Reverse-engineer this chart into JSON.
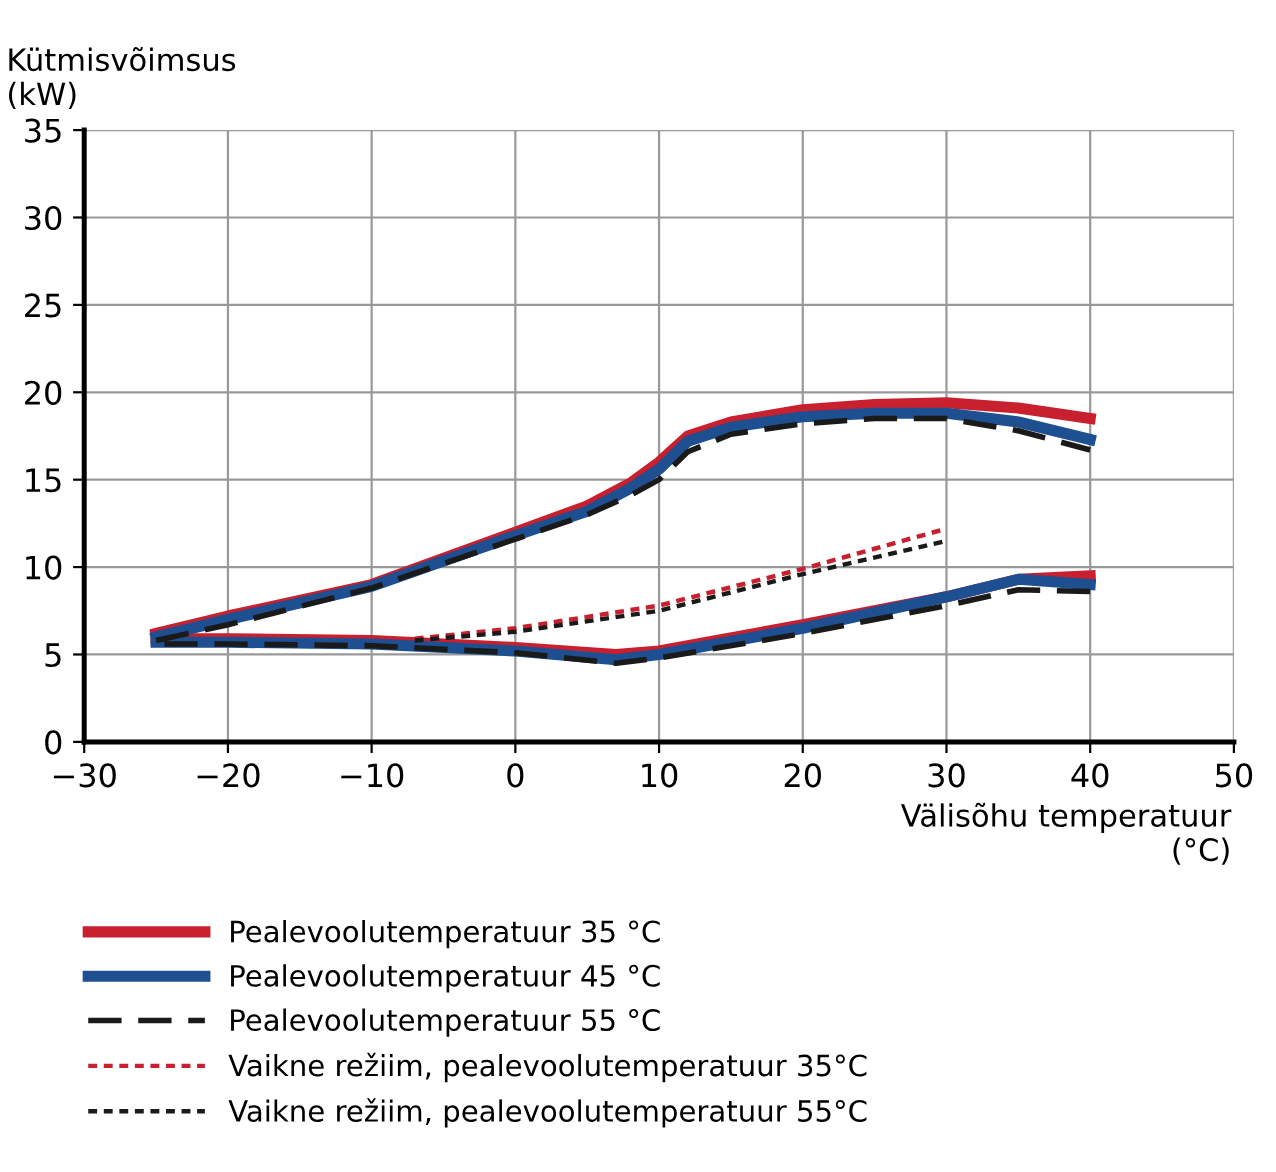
{
  "chart_data": {
    "type": "line",
    "xlabel": "Välisõhu temperatuur\n(°C)",
    "ylabel": "Kütmisvõimsus\n(kW)",
    "xlim": [
      -30,
      50
    ],
    "xticks": [
      -30,
      -20,
      -10,
      0,
      10,
      20,
      30,
      40,
      50
    ],
    "ylim": [
      0,
      35
    ],
    "yticks": [
      0,
      5,
      10,
      15,
      20,
      25,
      30,
      35
    ],
    "grid": true,
    "legend": "bottom",
    "marker": "none",
    "series": [
      {
        "name": "Pealevoolutemperatuur 35 °C",
        "color": "#c8202f",
        "line_style": "solid",
        "x": [
          -25,
          -20,
          -10,
          0,
          5,
          8,
          10,
          12,
          15,
          20,
          25,
          30,
          35,
          40,
          null,
          40,
          35,
          30,
          20,
          10,
          7,
          0,
          -10,
          -20,
          -25
        ],
        "values": [
          6.2,
          7.2,
          9.0,
          12.0,
          13.5,
          14.8,
          16.0,
          17.5,
          18.3,
          19.0,
          19.3,
          19.4,
          19.1,
          18.5,
          null,
          9.5,
          9.3,
          8.3,
          6.7,
          5.2,
          5.0,
          5.4,
          5.8,
          5.9,
          5.9
        ]
      },
      {
        "name": "Pealevoolutemperatuur 45 °C",
        "color": "#1d4f91",
        "line_style": "solid",
        "x": [
          -25,
          -20,
          -10,
          0,
          5,
          8,
          10,
          12,
          15,
          20,
          25,
          30,
          35,
          40,
          null,
          40,
          35,
          30,
          20,
          10,
          7,
          0,
          -10,
          -20,
          -25
        ],
        "values": [
          6.0,
          7.0,
          8.9,
          11.8,
          13.2,
          14.5,
          15.6,
          17.2,
          18.0,
          18.6,
          18.8,
          18.8,
          18.3,
          17.3,
          null,
          9.0,
          9.3,
          8.3,
          6.5,
          5.0,
          4.7,
          5.2,
          5.6,
          5.7,
          5.7
        ]
      },
      {
        "name": "Pealevoolutemperatuur 55 °C",
        "color": "#1a1a1a",
        "line_style": "dashed",
        "x": [
          -25,
          -20,
          -10,
          0,
          5,
          8,
          10,
          12,
          15,
          20,
          25,
          30,
          35,
          40,
          null,
          40,
          35,
          30,
          20,
          10,
          7,
          0,
          -10,
          -20,
          -25
        ],
        "values": [
          5.8,
          6.7,
          8.8,
          11.6,
          13.0,
          14.1,
          15.0,
          16.6,
          17.6,
          18.2,
          18.5,
          18.5,
          17.8,
          16.7,
          null,
          8.6,
          8.7,
          7.8,
          6.2,
          4.8,
          4.5,
          5.1,
          5.5,
          5.6,
          5.6
        ]
      },
      {
        "name": "Vaikne režiim, pealevoolutemperatuur 35°C",
        "color": "#c8202f",
        "line_style": "dotted",
        "x": [
          -7,
          0,
          10,
          20,
          30
        ],
        "values": [
          5.9,
          6.5,
          7.8,
          9.9,
          12.2
        ]
      },
      {
        "name": "Vaikne režiim, pealevoolutemperatuur 55°C",
        "color": "#1a1a1a",
        "line_style": "dotted",
        "x": [
          -7,
          0,
          10,
          20,
          30
        ],
        "values": [
          5.8,
          6.3,
          7.5,
          9.6,
          11.5
        ]
      }
    ]
  }
}
